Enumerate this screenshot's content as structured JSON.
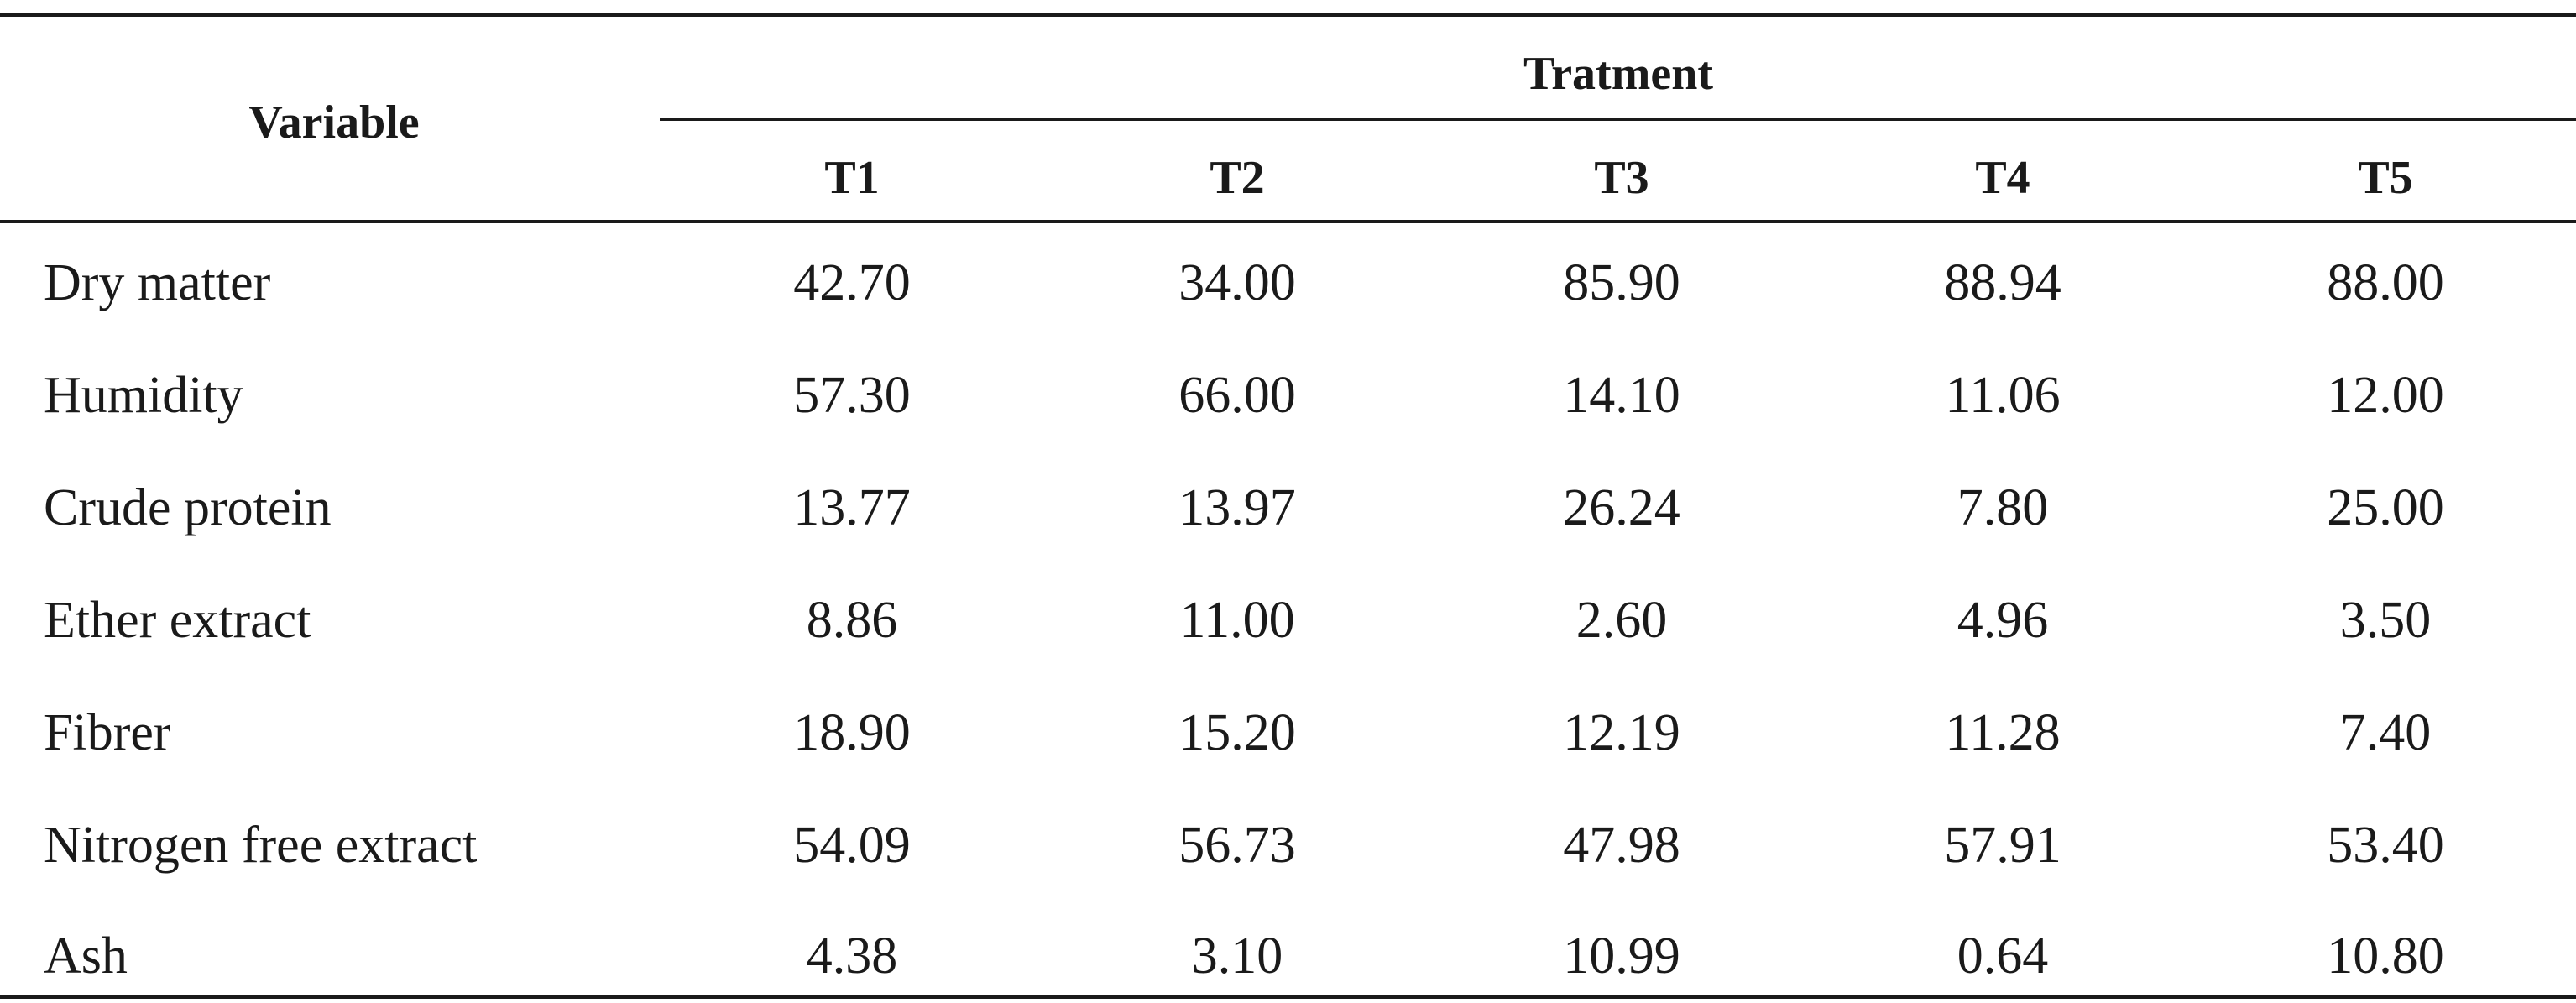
{
  "table": {
    "variable_header": "Variable",
    "group_header": "Tratment",
    "treatments": [
      "T1",
      "T2",
      "T3",
      "T4",
      "T5"
    ],
    "rows": [
      {
        "label": "Dry matter",
        "values": [
          "42.70",
          "34.00",
          "85.90",
          "88.94",
          "88.00"
        ]
      },
      {
        "label": "Humidity",
        "values": [
          "57.30",
          "66.00",
          "14.10",
          "11.06",
          "12.00"
        ]
      },
      {
        "label": "Crude protein",
        "values": [
          "13.77",
          "13.97",
          "26.24",
          "7.80",
          "25.00"
        ]
      },
      {
        "label": "Ether extract",
        "values": [
          "8.86",
          "11.00",
          "2.60",
          "4.96",
          "3.50"
        ]
      },
      {
        "label": "Fibrer",
        "values": [
          "18.90",
          "15.20",
          "12.19",
          "11.28",
          "7.40"
        ]
      },
      {
        "label": "Nitrogen free extract",
        "values": [
          "54.09",
          "56.73",
          "47.98",
          "57.91",
          "53.40"
        ]
      },
      {
        "label": "Ash",
        "values": [
          "4.38",
          "3.10",
          "10.99",
          "0.64",
          "10.80"
        ]
      }
    ]
  }
}
